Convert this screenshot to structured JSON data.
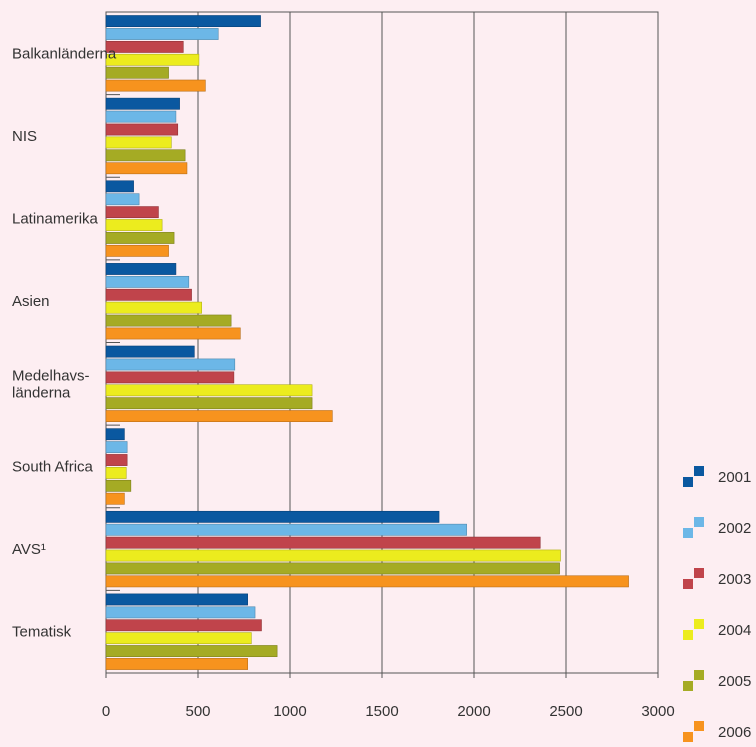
{
  "chart_data": {
    "type": "bar",
    "orientation": "horizontal",
    "categories": [
      "Balkanländerna",
      "NIS",
      "Latinamerika",
      "Asien",
      "Medelhavs-\nländerna",
      "South Africa",
      "AVS¹",
      "Tematisk"
    ],
    "series": [
      {
        "name": "2001",
        "color": "#0a58a0",
        "values": [
          840,
          400,
          150,
          380,
          480,
          100,
          1810,
          770
        ]
      },
      {
        "name": "2002",
        "color": "#6cb7e7",
        "values": [
          610,
          380,
          180,
          450,
          700,
          115,
          1960,
          810
        ]
      },
      {
        "name": "2003",
        "color": "#c0444b",
        "values": [
          420,
          390,
          285,
          465,
          695,
          115,
          2360,
          845
        ]
      },
      {
        "name": "2004",
        "color": "#ecec1e",
        "values": [
          505,
          355,
          305,
          520,
          1120,
          110,
          2470,
          790
        ]
      },
      {
        "name": "2005",
        "color": "#a5ab24",
        "values": [
          340,
          430,
          370,
          680,
          1120,
          135,
          2465,
          930
        ]
      },
      {
        "name": "2006",
        "color": "#f7931e",
        "values": [
          540,
          440,
          340,
          730,
          1230,
          100,
          2840,
          770
        ]
      }
    ],
    "xlim": [
      0,
      3000
    ],
    "x_ticks": [
      "0",
      "500",
      "1000",
      "1500",
      "2000",
      "2500",
      "3000"
    ],
    "grid": true,
    "legend_position": "right",
    "title": "",
    "xlabel": "",
    "ylabel": ""
  }
}
